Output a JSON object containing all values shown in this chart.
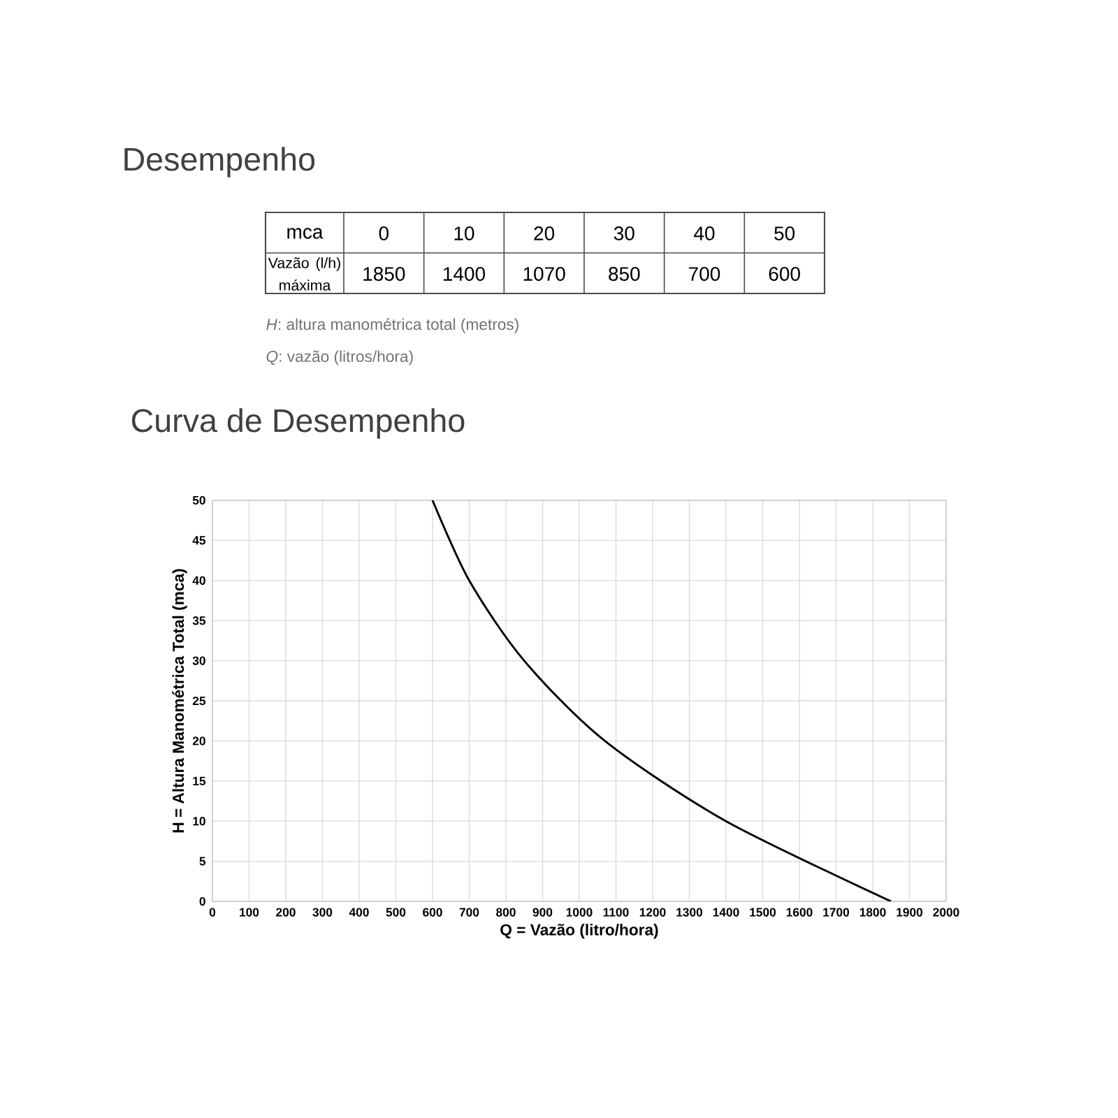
{
  "chart_data": {
    "type": "line",
    "title": "Curva de Desempenho",
    "xlabel": "Q = Vazão (litro/hora)",
    "ylabel": "H = Altura Manométrica Total (mca)",
    "x": [
      1850,
      1400,
      1070,
      850,
      700,
      600
    ],
    "values": [
      0,
      10,
      20,
      30,
      40,
      50
    ],
    "color": "#000000",
    "xlim": [
      0,
      2000
    ],
    "ylim": [
      0,
      50
    ],
    "xticks": [
      0,
      100,
      200,
      300,
      400,
      500,
      600,
      700,
      800,
      900,
      1000,
      1100,
      1200,
      1300,
      1400,
      1500,
      1600,
      1700,
      1800,
      1900,
      2000
    ],
    "yticks": [
      0,
      5,
      10,
      15,
      20,
      25,
      30,
      35,
      40,
      45,
      50
    ],
    "grid": true,
    "marker": "none",
    "line_style": "solid",
    "annotations": [
      "Desempenho",
      "mca",
      "0",
      "10",
      "20",
      "30",
      "40",
      "50",
      "Vazão (l/h) máxima",
      "1850",
      "1400",
      "1070",
      "850",
      "700",
      "600",
      "*H*: altura manométrica total (metros)",
      "*Q*: vazão (litros/hora)"
    ]
  }
}
